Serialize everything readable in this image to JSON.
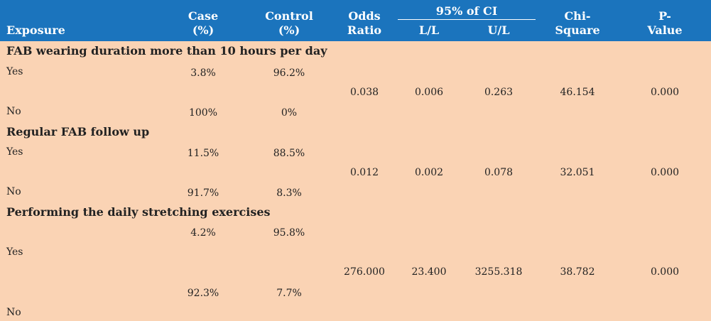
{
  "header": {
    "exposure": "Exposure",
    "case_l1": "Case",
    "case_l2": "(%)",
    "control_l1": "Control",
    "control_l2": "(%)",
    "or_l1": "Odds",
    "or_l2": "Ratio",
    "ci": "95% of CI",
    "ll": "L/L",
    "ul": "U/L",
    "chi_l1": "Chi-",
    "chi_l2": "Square",
    "p_l1": "P-",
    "p_l2": "Value"
  },
  "groups": [
    {
      "title": "FAB wearing duration more than 10 hours per day",
      "yes_label": "Yes",
      "no_label": "No",
      "yes_case": "3.8%",
      "yes_control": "96.2%",
      "no_case": "100%",
      "no_control": "0%",
      "odds_ratio": "0.038",
      "ll": "0.006",
      "ul": "0.263",
      "chi": "46.154",
      "p": "0.000"
    },
    {
      "title": "Regular FAB follow up",
      "yes_label": "Yes",
      "no_label": "No",
      "yes_case": "11.5%",
      "yes_control": "88.5%",
      "no_case": "91.7%",
      "no_control": "8.3%",
      "odds_ratio": "0.012",
      "ll": "0.002",
      "ul": "0.078",
      "chi": "32.051",
      "p": "0.000"
    },
    {
      "title": "Performing the daily stretching exercises",
      "yes_label": "Yes",
      "no_label": "No",
      "yes_case": "4.2%",
      "yes_control": "95.8%",
      "no_case": "92.3%",
      "no_control": "7.7%",
      "odds_ratio": "276.000",
      "ll": "23.400",
      "ul": "3255.318",
      "chi": "38.782",
      "p": "0.000"
    }
  ]
}
